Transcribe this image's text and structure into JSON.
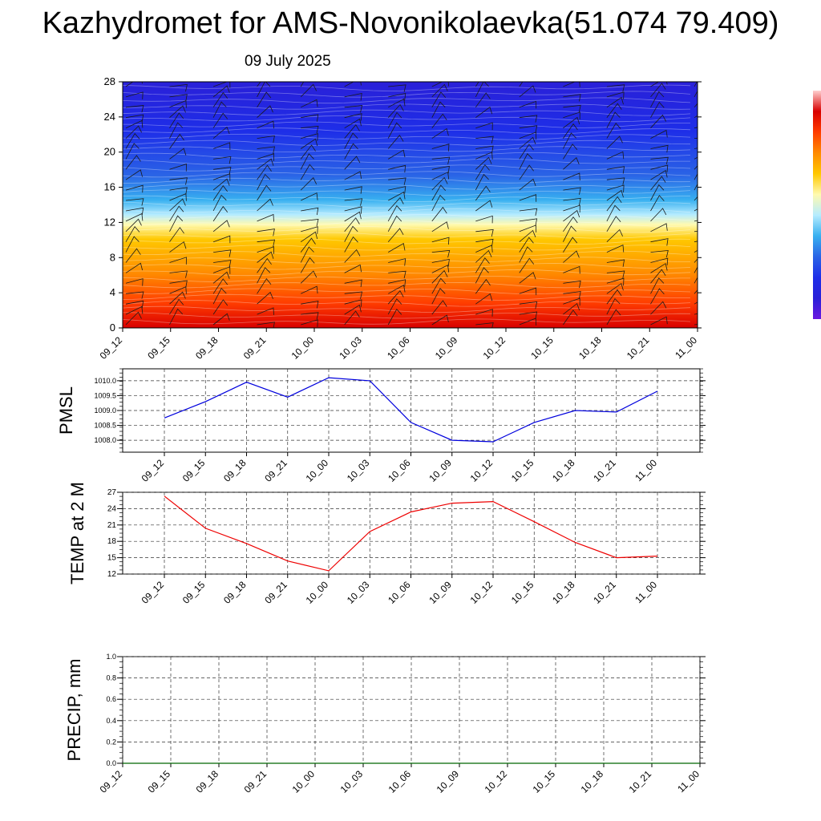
{
  "header": {
    "title": "Kazhydromet for AMS-Novonikolaevka(51.074 79.409)",
    "subtitle": "09 July 2025"
  },
  "chart_data": [
    {
      "id": "profile",
      "type": "heatmap",
      "title": "",
      "xlabel": "",
      "ylabel": "",
      "x_tick_labels": [
        "09_12",
        "09_15",
        "09_18",
        "09_21",
        "10_00",
        "10_03",
        "10_06",
        "10_09",
        "10_12",
        "10_15",
        "10_18",
        "10_21",
        "11_00"
      ],
      "y_ticks": [
        0,
        4,
        8,
        12,
        16,
        20,
        24,
        28
      ],
      "ylim": [
        0,
        28
      ],
      "colormap": [
        "#d80000",
        "#ff3c00",
        "#ff8a00",
        "#ffc800",
        "#fffab0",
        "#b6ecff",
        "#38b0f0",
        "#2a64e6",
        "#1e2ee8",
        "#2a20d8"
      ],
      "colorbar_colors": [
        "#6a18e0",
        "#2a20d8",
        "#1e2ee8",
        "#2a64e6",
        "#38b0f0",
        "#b6ecff",
        "#fffab0",
        "#ffc800",
        "#ff8a00",
        "#ff3c00",
        "#d80000",
        "#ffd0d0"
      ],
      "overlay": "wind barbs"
    },
    {
      "id": "pmsl",
      "type": "line",
      "ylabel": "PMSL",
      "x": [
        "09_12",
        "09_15",
        "09_18",
        "09_21",
        "10_00",
        "10_03",
        "10_06",
        "10_09",
        "10_12",
        "10_15",
        "10_18",
        "10_21",
        "11_00"
      ],
      "series": [
        {
          "values": [
            1008.75,
            1009.3,
            1009.95,
            1009.45,
            1010.1,
            1010.0,
            1008.6,
            1008.0,
            1007.95,
            1008.6,
            1009.0,
            1008.95,
            1009.65
          ],
          "color": "#0000dd"
        }
      ],
      "y_ticks": [
        "1008.0",
        "1008.5",
        "1009.0",
        "1009.5",
        "1010.0"
      ],
      "ylim": [
        1007.6,
        1010.4
      ],
      "grid": true
    },
    {
      "id": "temp",
      "type": "line",
      "ylabel": "TEMP at 2 M",
      "x": [
        "09_12",
        "09_15",
        "09_18",
        "09_21",
        "10_00",
        "10_03",
        "10_06",
        "10_09",
        "10_12",
        "10_15",
        "10_18",
        "10_21",
        "11_00"
      ],
      "series": [
        {
          "values": [
            26.3,
            20.4,
            17.6,
            14.4,
            12.6,
            19.8,
            23.4,
            25.0,
            25.3,
            21.6,
            17.8,
            15.0,
            15.3
          ],
          "color": "#ee0000"
        }
      ],
      "y_ticks": [
        "12",
        "15",
        "18",
        "21",
        "24",
        "27"
      ],
      "ylim": [
        12,
        27
      ],
      "grid": true
    },
    {
      "id": "precip",
      "type": "line",
      "ylabel": "PRECIP, mm",
      "x_tick_labels": [
        "09_12",
        "09_15",
        "09_18",
        "09_21",
        "10_00",
        "10_03",
        "10_06",
        "10_09",
        "10_12",
        "10_15",
        "10_18",
        "10_21",
        "11_00"
      ],
      "series": [
        {
          "values": [
            0,
            0,
            0,
            0,
            0,
            0,
            0,
            0,
            0,
            0,
            0,
            0,
            0
          ],
          "color": "#006600"
        }
      ],
      "y_ticks": [
        "0.0",
        "0.2",
        "0.4",
        "0.6",
        "0.8",
        "1.0"
      ],
      "ylim": [
        0,
        1
      ],
      "grid": true
    }
  ]
}
